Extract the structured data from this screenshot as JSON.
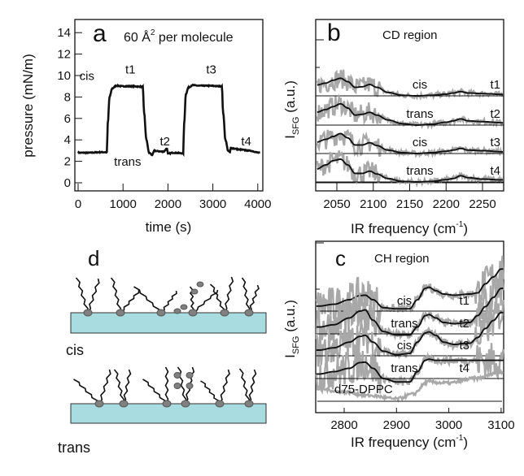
{
  "chart_data": [
    {
      "panel": "a",
      "type": "line",
      "annotation": "60 Å",
      "annotation_sup": "2",
      "annotation_tail": " per molecule",
      "xlabel": "time (s)",
      "ylabel": "pressure (mN/m)",
      "xlim": [
        -50,
        4100
      ],
      "ylim": [
        -0.5,
        15.5
      ],
      "xticks": [
        "0",
        "1000",
        "2000",
        "3000",
        "4000"
      ],
      "xtick_values": [
        0,
        1000,
        2000,
        3000,
        4000
      ],
      "yticks": [
        "0",
        "2",
        "4",
        "6",
        "8",
        "10",
        "12",
        "14"
      ],
      "ytick_values": [
        0,
        2,
        4,
        6,
        8,
        10,
        12,
        14
      ],
      "labels": [
        {
          "text": "cis",
          "x": 30,
          "y": 9.6
        },
        {
          "text": "t1",
          "x": 1050,
          "y": 10.2
        },
        {
          "text": "trans",
          "x": 800,
          "y": 1.6
        },
        {
          "text": "t2",
          "x": 1820,
          "y": 3.5
        },
        {
          "text": "t3",
          "x": 2850,
          "y": 10.2
        },
        {
          "text": "t4",
          "x": 3630,
          "y": 3.5
        }
      ],
      "x": [
        0,
        250,
        500,
        640,
        660,
        700,
        760,
        850,
        1000,
        1200,
        1440,
        1470,
        1520,
        1580,
        1650,
        1700,
        1750,
        1900,
        1980,
        2000,
        2100,
        2340,
        2360,
        2400,
        2460,
        2550,
        2700,
        2900,
        3200,
        3230,
        3280,
        3340,
        3380,
        3400,
        3450,
        3600,
        3800,
        4050
      ],
      "y": [
        2.8,
        2.8,
        2.85,
        2.85,
        5.5,
        8.0,
        8.8,
        9.05,
        9.0,
        9.0,
        8.95,
        6.5,
        4.0,
        2.8,
        2.6,
        3.0,
        2.95,
        2.9,
        3.2,
        2.7,
        2.8,
        2.75,
        5.5,
        8.3,
        8.9,
        9.1,
        9.05,
        9.05,
        9.0,
        6.5,
        4.0,
        3.0,
        2.85,
        3.25,
        3.2,
        3.1,
        3.0,
        2.8
      ]
    },
    {
      "panel": "b",
      "type": "line",
      "title": "CD region",
      "xlabel": "IR frequency (cm",
      "xlabel_sup": "-1",
      "xlabel_tail": ")",
      "ylabel": "I",
      "ylabel_sub": "SFG",
      "ylabel_tail": " (a.u.)",
      "xlim": [
        2021,
        2279
      ],
      "xticks": [
        "2050",
        "2100",
        "2150",
        "2200",
        "2250"
      ],
      "xtick_values": [
        2050,
        2100,
        2150,
        2200,
        2250
      ],
      "fit_x": [
        2022,
        2035,
        2045,
        2055,
        2065,
        2075,
        2085,
        2095,
        2105,
        2120,
        2140,
        2160,
        2180,
        2200,
        2210,
        2220,
        2230,
        2250,
        2278
      ],
      "series": [
        {
          "name": "cis",
          "tag": "t1",
          "fit": [
            0.38,
            0.45,
            0.55,
            0.62,
            0.5,
            0.3,
            0.32,
            0.4,
            0.3,
            0.12,
            0.02,
            0.0,
            0.02,
            0.06,
            0.1,
            0.15,
            0.1,
            0.08,
            0.05
          ]
        },
        {
          "name": "trans",
          "tag": "t2",
          "fit": [
            0.45,
            0.55,
            0.65,
            0.75,
            0.6,
            0.35,
            0.38,
            0.45,
            0.35,
            0.18,
            0.05,
            0.0,
            0.03,
            0.1,
            0.15,
            0.22,
            0.15,
            0.12,
            0.08
          ]
        },
        {
          "name": "cis",
          "tag": "t3",
          "fit": [
            0.4,
            0.5,
            0.6,
            0.7,
            0.55,
            0.3,
            0.3,
            0.38,
            0.28,
            0.12,
            0.03,
            0.0,
            0.03,
            0.08,
            0.12,
            0.18,
            0.12,
            0.1,
            0.06
          ]
        },
        {
          "name": "trans",
          "tag": "t4",
          "fit": [
            0.45,
            0.6,
            0.75,
            0.8,
            0.6,
            0.3,
            0.3,
            0.38,
            0.28,
            0.12,
            0.02,
            0.0,
            0.02,
            0.08,
            0.12,
            0.22,
            0.15,
            0.1,
            0.07
          ]
        }
      ]
    },
    {
      "panel": "c",
      "type": "line",
      "title": "CH region",
      "xlabel": "IR frequency (cm",
      "xlabel_sup": "-1",
      "xlabel_tail": ")",
      "ylabel": "I",
      "ylabel_sub": "SFG",
      "ylabel_tail": " (a.u.)",
      "xlim": [
        2745,
        3105
      ],
      "xticks": [
        "2800",
        "2900",
        "3000",
        "3100"
      ],
      "xtick_values": [
        2800,
        2900,
        3000,
        3100
      ],
      "fit_x": [
        2752,
        2780,
        2810,
        2830,
        2840,
        2855,
        2875,
        2900,
        2925,
        2940,
        2955,
        2962,
        2975,
        2990,
        3010,
        3040,
        3055,
        3070,
        3085,
        3100
      ],
      "series": [
        {
          "name": "cis",
          "tag": "t1",
          "fit": [
            0.22,
            0.3,
            0.5,
            0.68,
            0.7,
            0.5,
            0.15,
            0.1,
            0.1,
            0.5,
            1.0,
            1.05,
            0.9,
            0.75,
            0.7,
            0.75,
            0.8,
            1.2,
            1.5,
            1.85
          ]
        },
        {
          "name": "trans",
          "tag": "t2",
          "fit": [
            0.3,
            0.4,
            0.7,
            1.0,
            1.05,
            0.6,
            0.1,
            -0.05,
            -0.05,
            0.3,
            0.8,
            0.85,
            0.7,
            0.5,
            0.45,
            0.5,
            0.8,
            1.2,
            1.6,
            2.0
          ]
        },
        {
          "name": "cis",
          "tag": "t3",
          "fit": [
            0.25,
            0.35,
            0.6,
            0.85,
            0.9,
            0.6,
            0.2,
            0.05,
            0.1,
            0.6,
            1.0,
            1.05,
            0.9,
            0.6,
            0.5,
            0.55,
            0.8,
            1.2,
            1.55,
            1.9
          ]
        },
        {
          "name": "trans",
          "tag": "t4",
          "fit": [
            0.2,
            0.3,
            0.45,
            0.7,
            0.72,
            0.45,
            0.0,
            -0.15,
            -0.15,
            0.3,
            0.8,
            0.85,
            0.8,
            0.8,
            0.8,
            0.8,
            0.8,
            0.8,
            0.8,
            0.8
          ]
        }
      ],
      "reference": {
        "name": "d75-DPPC",
        "x": [
          2752,
          2800,
          2850,
          2900,
          2930,
          2960,
          3000,
          3050,
          3100
        ],
        "y": [
          0.55,
          0.4,
          0.25,
          0.1,
          0.3,
          0.85,
          0.8,
          1.0,
          1.3
        ]
      }
    }
  ],
  "panels": {
    "a": "a",
    "b": "b",
    "c": "c",
    "d": "d"
  },
  "diagram": {
    "cis_label": "cis",
    "trans_label": "trans",
    "substrate_color": "#a9dce0",
    "headgroup_color": "#808080"
  },
  "colors": {
    "fit": "#111111",
    "data": "#a8a8a8"
  }
}
